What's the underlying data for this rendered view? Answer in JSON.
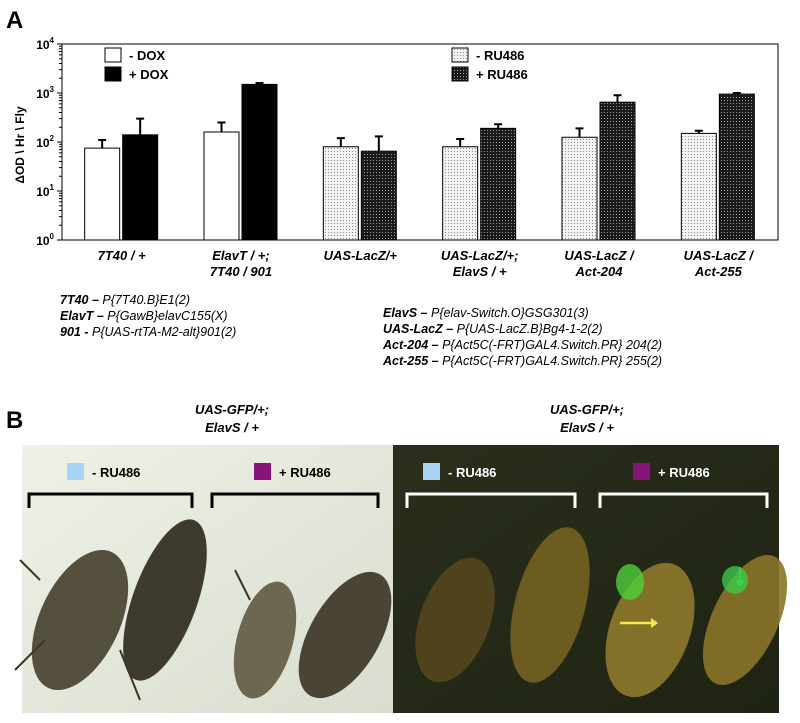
{
  "chart_data": {
    "type": "bar",
    "panel_label": "A",
    "y_label": "ΔOD \\ Hr \\ Fly",
    "log_scale": true,
    "ylim": [
      1,
      10000
    ],
    "yticks": [
      {
        "value": 1,
        "label": "10",
        "exponent": "0"
      },
      {
        "value": 10,
        "label": "10",
        "exponent": "1"
      },
      {
        "value": 100,
        "label": "10",
        "exponent": "2"
      },
      {
        "value": 1000,
        "label": "10",
        "exponent": "3"
      },
      {
        "value": 10000,
        "label": "10",
        "exponent": "4"
      }
    ],
    "categories": [
      [
        "7T40 / +"
      ],
      [
        "ElavT / +;",
        "7T40 / 901"
      ],
      [
        "UAS-LacZ/+"
      ],
      [
        "UAS-LacZ/+;",
        "ElavS / +"
      ],
      [
        "UAS-LacZ /",
        "Act-204"
      ],
      [
        "UAS-LacZ /",
        "Act-255"
      ]
    ],
    "series": [
      {
        "name": "- DOX",
        "color": "#ffffff",
        "hatch": false,
        "values": [
          75,
          160,
          null,
          null,
          null,
          null
        ],
        "errors": [
          35,
          90,
          null,
          null,
          null,
          null
        ]
      },
      {
        "name": "+ DOX",
        "color": "#000000",
        "hatch": false,
        "values": [
          140,
          1500,
          null,
          null,
          null,
          null
        ],
        "errors": [
          160,
          100,
          null,
          null,
          null,
          null
        ]
      },
      {
        "name": "- RU486",
        "color": "#f2f2f2",
        "hatch": true,
        "values": [
          null,
          null,
          80,
          80,
          125,
          150
        ],
        "errors": [
          null,
          null,
          40,
          35,
          65,
          20
        ]
      },
      {
        "name": "+ RU486",
        "color": "#1a1a1a",
        "hatch": true,
        "values": [
          null,
          null,
          65,
          190,
          650,
          950
        ],
        "errors": [
          null,
          null,
          65,
          40,
          250,
          50
        ]
      }
    ],
    "notes_left": [
      {
        "name": "7T40",
        "sep": "–",
        "desc": "P{7T40.B}E1(2)"
      },
      {
        "name": "ElavT",
        "sep": "–",
        "desc": "P{GawB}elavC155(X)"
      },
      {
        "name": "901",
        "sep": "-",
        "desc": "P{UAS-rtTA-M2-alt}901(2)"
      }
    ],
    "notes_right": [
      {
        "name": "ElavS",
        "sep": "–",
        "desc": "P{elav-Switch.O}GSG301(3)"
      },
      {
        "name": "UAS-LacZ",
        "sep": "–",
        "desc": "P{UAS-LacZ.B}Bg4-1-2(2)"
      },
      {
        "name": "Act-204",
        "sep": "–",
        "desc": "P{Act5C(-FRT)GAL4.Switch.PR} 204(2)"
      },
      {
        "name": "Act-255",
        "sep": "–",
        "desc": "P{Act5C(-FRT)GAL4.Switch.PR} 255(2)"
      }
    ]
  },
  "panel_b": {
    "label": "B",
    "left": {
      "genotype": [
        "UAS-GFP/+;",
        "ElavS / +"
      ],
      "groups": [
        "- RU486",
        "+ RU486"
      ]
    },
    "right": {
      "genotype": [
        "UAS-GFP/+;",
        "ElavS / +"
      ],
      "groups": [
        "- RU486",
        "+ RU486"
      ]
    }
  }
}
